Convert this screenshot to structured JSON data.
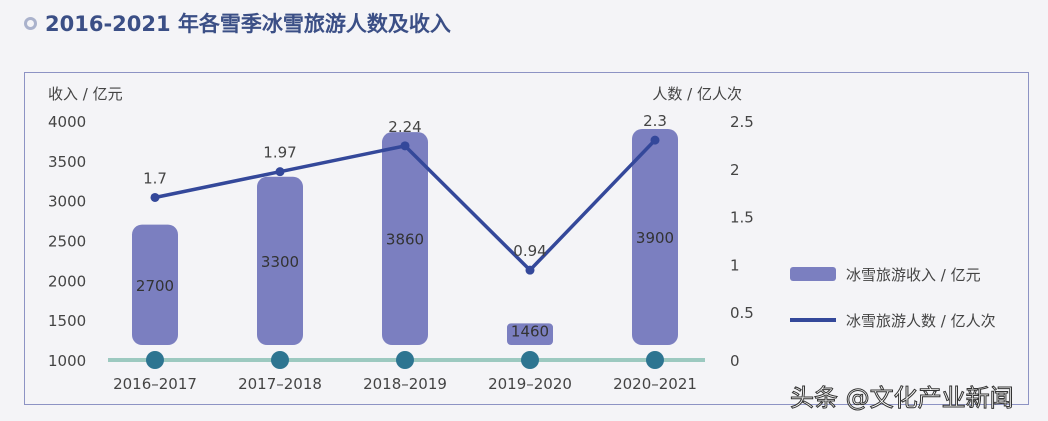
{
  "title": "2016-2021 年各雪季冰雪旅游人数及收入",
  "watermark": "头条 @文化产业新闻",
  "chart_data": {
    "type": "bar+line",
    "categories": [
      "2016-2017",
      "2017-2018",
      "2018-2019",
      "2019-2020",
      "2020-2021"
    ],
    "series": [
      {
        "name": "冰雪旅游收入 / 亿元",
        "type": "bar",
        "axis": "left",
        "values": [
          2700,
          3300,
          3860,
          1460,
          3900
        ],
        "color": "#7b7fc0"
      },
      {
        "name": "冰雪旅游人数 / 亿人次",
        "type": "line",
        "axis": "right",
        "values": [
          1.7,
          1.97,
          2.24,
          0.94,
          2.3
        ],
        "color": "#34489a"
      }
    ],
    "ylabel_left": "收入 / 亿元",
    "ylabel_right": "人数 / 亿人次",
    "ylim_left": [
      1000,
      4000
    ],
    "yticks_left": [
      "1000",
      "1500",
      "2000",
      "2500",
      "3000",
      "3500",
      "4000"
    ],
    "ylim_right": [
      0,
      2.5
    ],
    "yticks_right": [
      "0",
      "0.5",
      "1",
      "1.5",
      "2",
      "2.5"
    ],
    "legend": "right",
    "grid": false,
    "axis_color": "#9cc9c0",
    "marker_color": "#2e7591"
  }
}
